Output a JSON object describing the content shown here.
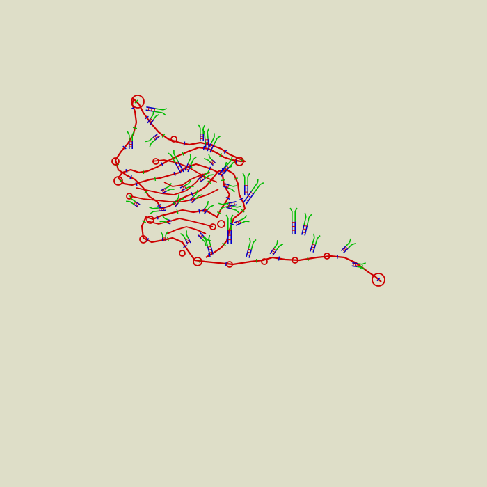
{
  "diagram": {
    "kind": "rna-secondary-structure",
    "background_color": "#dedec8",
    "loop_color": "#cc0000",
    "stem_color_a": "#0000cc",
    "stem_color_b": "#00bb00",
    "labels_visible": false
  }
}
